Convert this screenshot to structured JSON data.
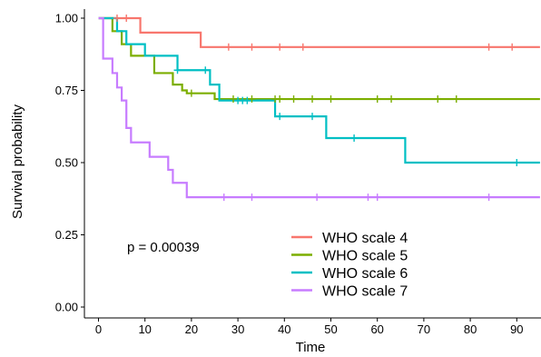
{
  "chart_data": {
    "type": "line",
    "xlabel": "Time",
    "ylabel": "Survival probability",
    "xlim": [
      -4,
      95
    ],
    "ylim": [
      -0.03,
      1.04
    ],
    "xticks": [
      0,
      10,
      20,
      30,
      40,
      50,
      60,
      70,
      80,
      90
    ],
    "yticks": [
      0.0,
      0.25,
      0.5,
      0.75,
      1.0
    ],
    "x_tick_labels": [
      "0",
      "10",
      "20",
      "30",
      "40",
      "50",
      "60",
      "70",
      "80",
      "90"
    ],
    "y_tick_labels": [
      "0.00",
      "0.25",
      "0.50",
      "0.75",
      "1.00"
    ],
    "grid": false,
    "annotation": "p = 0.00039",
    "legend_position": "inside-bottom-center",
    "series": [
      {
        "name": "WHO scale 4",
        "color": "#F8766D",
        "steps": [
          [
            0,
            1.0
          ],
          [
            9,
            0.95
          ],
          [
            22,
            0.9
          ],
          [
            95,
            0.9
          ]
        ],
        "censored": [
          [
            4,
            1.0
          ],
          [
            6,
            1.0
          ],
          [
            28,
            0.9
          ],
          [
            33,
            0.9
          ],
          [
            39,
            0.9
          ],
          [
            44,
            0.9
          ],
          [
            84,
            0.9
          ],
          [
            89,
            0.9
          ]
        ]
      },
      {
        "name": "WHO scale 5",
        "color": "#7CAE00",
        "steps": [
          [
            0,
            1.0
          ],
          [
            3,
            0.955
          ],
          [
            5,
            0.91
          ],
          [
            7,
            0.87
          ],
          [
            12,
            0.81
          ],
          [
            16,
            0.77
          ],
          [
            18,
            0.75
          ],
          [
            19,
            0.74
          ],
          [
            25,
            0.72
          ],
          [
            95,
            0.72
          ]
        ],
        "censored": [
          [
            20,
            0.74
          ],
          [
            29,
            0.72
          ],
          [
            33,
            0.72
          ],
          [
            38,
            0.72
          ],
          [
            39,
            0.72
          ],
          [
            42,
            0.72
          ],
          [
            46,
            0.72
          ],
          [
            50,
            0.72
          ],
          [
            60,
            0.72
          ],
          [
            63,
            0.72
          ],
          [
            73,
            0.72
          ],
          [
            77,
            0.72
          ]
        ]
      },
      {
        "name": "WHO scale 6",
        "color": "#00BFC4",
        "steps": [
          [
            0,
            1.0
          ],
          [
            4,
            0.955
          ],
          [
            6,
            0.91
          ],
          [
            10,
            0.87
          ],
          [
            17,
            0.82
          ],
          [
            24,
            0.77
          ],
          [
            26,
            0.715
          ],
          [
            38,
            0.66
          ],
          [
            49,
            0.585
          ],
          [
            66,
            0.5
          ],
          [
            95,
            0.5
          ]
        ],
        "censored": [
          [
            17,
            0.82
          ],
          [
            23,
            0.82
          ],
          [
            30,
            0.715
          ],
          [
            31,
            0.715
          ],
          [
            32,
            0.715
          ],
          [
            39,
            0.66
          ],
          [
            46,
            0.66
          ],
          [
            55,
            0.585
          ],
          [
            90,
            0.5
          ]
        ]
      },
      {
        "name": "WHO scale 7",
        "color": "#C77CFF",
        "steps": [
          [
            0,
            1.0
          ],
          [
            1,
            0.86
          ],
          [
            3,
            0.81
          ],
          [
            4,
            0.76
          ],
          [
            5,
            0.715
          ],
          [
            6,
            0.62
          ],
          [
            7,
            0.57
          ],
          [
            11,
            0.52
          ],
          [
            15,
            0.475
          ],
          [
            16,
            0.43
          ],
          [
            19,
            0.38
          ],
          [
            95,
            0.38
          ]
        ],
        "censored": [
          [
            27,
            0.38
          ],
          [
            33,
            0.38
          ],
          [
            47,
            0.38
          ],
          [
            58,
            0.38
          ],
          [
            60,
            0.38
          ],
          [
            84,
            0.38
          ]
        ]
      }
    ]
  }
}
